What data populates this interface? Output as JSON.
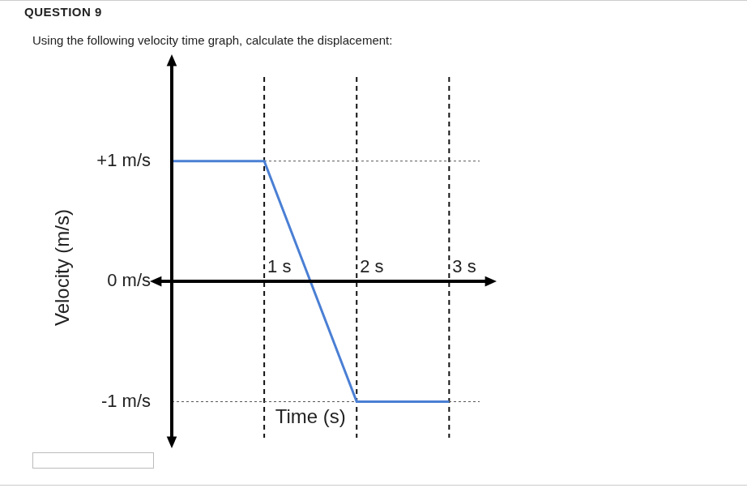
{
  "question": {
    "heading": "QUESTION 9",
    "prompt": "Using the following velocity time graph, calculate the displacement:"
  },
  "chart_data": {
    "type": "line",
    "x_label": "Time (s)",
    "y_label": "Velocity (m/s)",
    "x": [
      0,
      1,
      2,
      3
    ],
    "values": [
      1,
      1,
      -1,
      -1
    ],
    "color": "#4a7fd4",
    "xlim": [
      0,
      3.4
    ],
    "ylim": [
      -1.3,
      1.8
    ],
    "xticks": [
      {
        "value": 1,
        "label": "1 s"
      },
      {
        "value": 2,
        "label": "2 s"
      },
      {
        "value": 3,
        "label": "3 s"
      }
    ],
    "yticks": [
      {
        "value": -1,
        "label": "-1 m/s"
      },
      {
        "value": 0,
        "label": "0 m/s"
      },
      {
        "value": 1,
        "label": "+1 m/s"
      }
    ],
    "grid": true
  }
}
